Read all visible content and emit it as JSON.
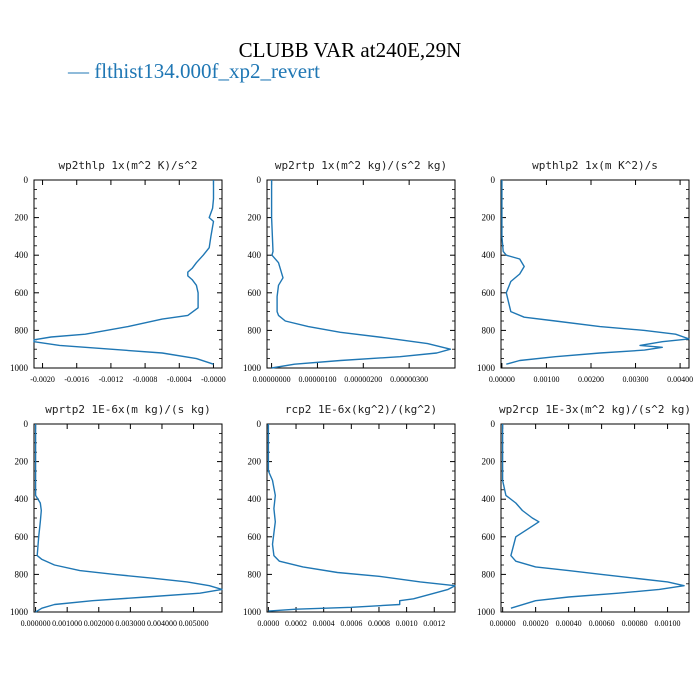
{
  "title": "CLUBB VAR at240E,29N",
  "legend": {
    "line": "—",
    "label": "flthist134.000f_xp2_revert",
    "color": "#1f77b4"
  },
  "chart_data": [
    {
      "type": "line",
      "title": "wp2thlp  1x(m^2 K)/s^2",
      "xlim": [
        -0.0021,
        0.0001
      ],
      "ylim": [
        1000,
        0
      ],
      "yticks": [
        0,
        200,
        400,
        600,
        800,
        1000
      ],
      "xticks": [
        -0.002,
        -0.0016,
        -0.0012,
        -0.0008,
        -0.0004,
        -0.0
      ],
      "xticklabels": [
        "-0.0020",
        "-0.0016",
        "-0.0012",
        "-0.0008",
        "-0.0004",
        "-0.0000"
      ],
      "series": [
        {
          "x": [
            0,
            0,
            -1e-05,
            -5e-05,
            0,
            -3e-05,
            -5e-05,
            -0.00012,
            -0.0002,
            -0.00025,
            -0.0003,
            -0.0003,
            -0.00025,
            -0.0002,
            -0.00018,
            -0.00018,
            -0.0003,
            -0.0006,
            -0.001,
            -0.0015,
            -0.0019,
            -0.0021,
            -0.0021,
            -0.0018,
            -0.0012,
            -0.0006,
            -0.0002,
            0
          ],
          "y": [
            0,
            100,
            150,
            200,
            220,
            300,
            360,
            400,
            440,
            470,
            490,
            510,
            530,
            560,
            600,
            680,
            720,
            740,
            780,
            820,
            835,
            850,
            860,
            880,
            900,
            920,
            950,
            980
          ]
        }
      ]
    },
    {
      "type": "line",
      "title": "wp2rtp  1x(m^2 kg)/(s^2 kg)",
      "xlim": [
        -1e-07,
        4e-06
      ],
      "ylim": [
        1000,
        0
      ],
      "yticks": [
        0,
        200,
        400,
        600,
        800,
        1000
      ],
      "xticks": [
        0,
        1e-06,
        2e-06,
        3e-06
      ],
      "xticklabels": [
        "0.00000000",
        "0.00000100",
        "0.00000200",
        "0.00000300"
      ],
      "series": [
        {
          "x": [
            0,
            0,
            3e-08,
            1e-08,
            1.5e-07,
            2.5e-07,
            1.5e-07,
            1.2e-07,
            1.2e-07,
            1.5e-07,
            3e-07,
            8e-07,
            1.5e-06,
            2.5e-06,
            3.4e-06,
            3.9e-06,
            3.6e-06,
            2.8e-06,
            1.5e-06,
            5e-07,
            0
          ],
          "y": [
            0,
            200,
            380,
            400,
            440,
            520,
            560,
            620,
            700,
            720,
            750,
            780,
            810,
            840,
            870,
            900,
            920,
            940,
            960,
            980,
            1000
          ]
        }
      ]
    },
    {
      "type": "line",
      "title": "wpthlp2  1x(m K^2)/s",
      "xlim": [
        -2e-05,
        0.0042
      ],
      "ylim": [
        1000,
        0
      ],
      "yticks": [
        0,
        200,
        400,
        600,
        800,
        1000
      ],
      "xticks": [
        0,
        0.001,
        0.002,
        0.003,
        0.004
      ],
      "xticklabels": [
        "0.00000",
        "0.00100",
        "0.00200",
        "0.00300",
        "0.00400"
      ],
      "series": [
        {
          "x": [
            0,
            0,
            3e-05,
            0.0001,
            0.0004,
            0.0005,
            0.0004,
            0.0002,
            0.0001,
            0.0002,
            0.0005,
            0.0012,
            0.0022,
            0.0032,
            0.0039,
            0.0042,
            0.0036,
            0.0031,
            0.0036,
            0.0032,
            0.0022,
            0.0012,
            0.0004,
            0.0001
          ],
          "y": [
            0,
            300,
            380,
            400,
            420,
            460,
            500,
            540,
            600,
            700,
            730,
            750,
            780,
            800,
            820,
            845,
            860,
            880,
            890,
            905,
            920,
            940,
            960,
            980
          ]
        }
      ]
    },
    {
      "type": "line",
      "title": "wprtp2  1E-6x(m kg)/(s kg)",
      "xlim": [
        -5e-05,
        0.0059
      ],
      "ylim": [
        1000,
        0
      ],
      "yticks": [
        0,
        200,
        400,
        600,
        800,
        1000
      ],
      "xticks": [
        0,
        0.001,
        0.002,
        0.003,
        0.004,
        0.005
      ],
      "xticklabels": [
        "0.000000",
        "0.001000",
        "0.002000",
        "0.003000",
        "0.004000",
        "0.005000"
      ],
      "series": [
        {
          "x": [
            0,
            0,
            0.00015,
            0.00018,
            0.00015,
            0.0001,
            5e-05,
            0.0002,
            0.0006,
            0.0014,
            0.0025,
            0.0037,
            0.0048,
            0.0055,
            0.0059,
            0.0052,
            0.0035,
            0.0018,
            0.0006,
            0.0002,
            0
          ],
          "y": [
            0,
            380,
            420,
            460,
            520,
            600,
            700,
            720,
            750,
            780,
            800,
            820,
            840,
            860,
            880,
            900,
            920,
            940,
            960,
            980,
            1000
          ]
        }
      ]
    },
    {
      "type": "line",
      "title": "rcp2  1E-6x(kg^2)/(kg^2)",
      "xlim": [
        -1e-05,
        0.00135
      ],
      "ylim": [
        1000,
        0
      ],
      "yticks": [
        0,
        200,
        400,
        600,
        800,
        1000
      ],
      "xticks": [
        0,
        0.0002,
        0.0004,
        0.0006,
        0.0008,
        0.001,
        0.0012
      ],
      "xticklabels": [
        "0.0000",
        "0.0002",
        "0.0004",
        "0.0006",
        "0.0008",
        "0.0010",
        "0.0012"
      ],
      "series": [
        {
          "x": [
            0,
            0,
            3e-05,
            5e-05,
            4e-05,
            5e-05,
            4e-05,
            3e-05,
            4e-05,
            8e-05,
            0.00025,
            0.0005,
            0.0008,
            0.0011,
            0.00135,
            0.0013,
            0.0012,
            0.00105,
            0.00095,
            0.00095,
            0.0006,
            0.0002,
            0
          ],
          "y": [
            0,
            250,
            300,
            380,
            450,
            520,
            580,
            640,
            700,
            730,
            760,
            790,
            810,
            840,
            860,
            880,
            900,
            930,
            940,
            960,
            975,
            985,
            995
          ]
        }
      ]
    },
    {
      "type": "line",
      "title": "wp2rcp  1E-3x(m^2 kg)/(s^2 kg)",
      "xlim": [
        -1e-05,
        0.00113
      ],
      "ylim": [
        1000,
        0
      ],
      "yticks": [
        0,
        200,
        400,
        600,
        800,
        1000
      ],
      "xticks": [
        0,
        0.0002,
        0.0004,
        0.0006,
        0.0008,
        0.001
      ],
      "xticklabels": [
        "0.00000",
        "0.00020",
        "0.00040",
        "0.00060",
        "0.00080",
        "0.00100"
      ],
      "series": [
        {
          "x": [
            0,
            0,
            2e-05,
            8e-05,
            0.00012,
            0.00018,
            0.00022,
            0.00015,
            8e-05,
            5e-05,
            8e-05,
            0.0002,
            0.0004,
            0.0006,
            0.0008,
            0.001,
            0.0011,
            0.00095,
            0.0007,
            0.0004,
            0.0002,
            5e-05
          ],
          "y": [
            0,
            300,
            380,
            420,
            460,
            500,
            520,
            560,
            600,
            700,
            730,
            760,
            780,
            800,
            820,
            840,
            860,
            880,
            900,
            920,
            940,
            980
          ]
        }
      ]
    }
  ]
}
